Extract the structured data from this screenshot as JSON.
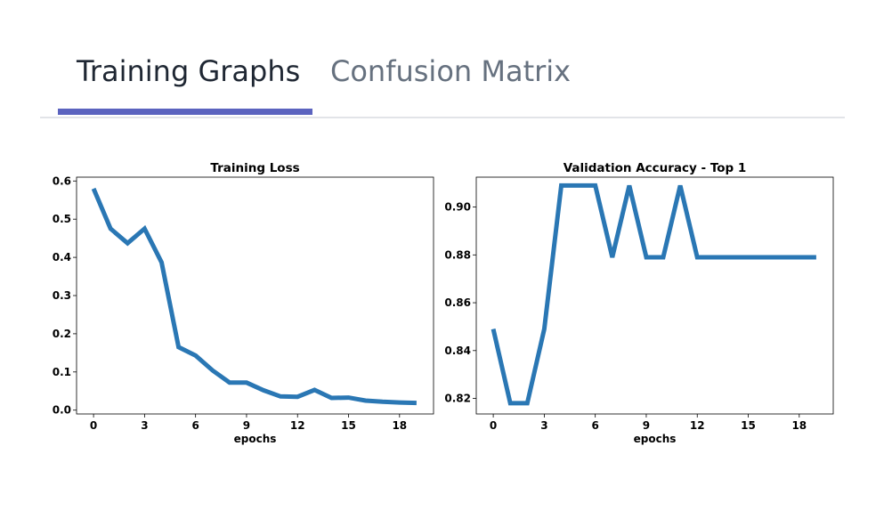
{
  "tabs": {
    "active_label": "Training Graphs",
    "inactive_label": "Confusion Matrix",
    "underline_color": "#5b63bf"
  },
  "chart_data": [
    {
      "type": "line",
      "title": "Training Loss",
      "xlabel": "epochs",
      "ylabel": "",
      "xlim": [
        -1,
        20
      ],
      "ylim": [
        -0.01,
        0.61
      ],
      "xticks": [
        0,
        3,
        6,
        9,
        12,
        15,
        18
      ],
      "xtick_labels": [
        "0",
        "3",
        "6",
        "9",
        "12",
        "15",
        "18"
      ],
      "yticks": [
        0.0,
        0.1,
        0.2,
        0.3,
        0.4,
        0.5,
        0.6
      ],
      "ytick_labels": [
        "0.0",
        "0.1",
        "0.2",
        "0.3",
        "0.4",
        "0.5",
        "0.6"
      ],
      "grid": false,
      "line_color": "#2a77b4",
      "x": [
        0,
        1,
        2,
        3,
        4,
        5,
        6,
        7,
        8,
        9,
        10,
        11,
        12,
        13,
        14,
        15,
        16,
        17,
        18,
        19
      ],
      "values": [
        0.58,
        0.475,
        0.437,
        0.475,
        0.387,
        0.165,
        0.143,
        0.104,
        0.072,
        0.072,
        0.052,
        0.036,
        0.035,
        0.053,
        0.032,
        0.033,
        0.025,
        0.022,
        0.02,
        0.019
      ]
    },
    {
      "type": "line",
      "title": "Validation Accuracy - Top 1",
      "xlabel": "epochs",
      "ylabel": "",
      "xlim": [
        -1,
        20
      ],
      "ylim": [
        0.8135,
        0.9125
      ],
      "xticks": [
        0,
        3,
        6,
        9,
        12,
        15,
        18
      ],
      "xtick_labels": [
        "0",
        "3",
        "6",
        "9",
        "12",
        "15",
        "18"
      ],
      "yticks": [
        0.82,
        0.84,
        0.86,
        0.88,
        0.9
      ],
      "ytick_labels": [
        "0.82",
        "0.84",
        "0.86",
        "0.88",
        "0.90"
      ],
      "grid": false,
      "line_color": "#2a77b4",
      "x": [
        0,
        1,
        2,
        3,
        4,
        5,
        6,
        7,
        8,
        9,
        10,
        11,
        12,
        13,
        14,
        15,
        16,
        17,
        18,
        19
      ],
      "values": [
        0.849,
        0.818,
        0.818,
        0.849,
        0.909,
        0.909,
        0.909,
        0.879,
        0.909,
        0.879,
        0.879,
        0.909,
        0.879,
        0.879,
        0.879,
        0.879,
        0.879,
        0.879,
        0.879,
        0.879
      ]
    }
  ]
}
